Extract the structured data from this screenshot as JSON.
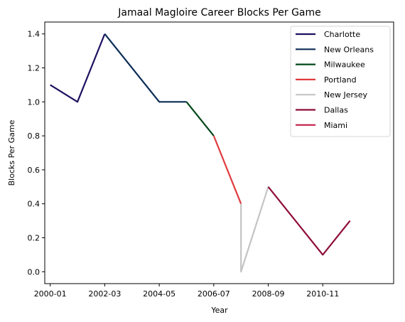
{
  "chart_data": {
    "type": "line",
    "title": "Jamaal Magloire Career Blocks Per Game",
    "xlabel": "Year",
    "ylabel": "Blocks Per Game",
    "xlim": [
      1999.8,
      2012.6
    ],
    "ylim": [
      -0.07,
      1.47
    ],
    "xticks": [
      {
        "value": 2000,
        "label": "2000-01"
      },
      {
        "value": 2002,
        "label": "2002-03"
      },
      {
        "value": 2004,
        "label": "2004-05"
      },
      {
        "value": 2006,
        "label": "2006-07"
      },
      {
        "value": 2008,
        "label": "2008-09"
      },
      {
        "value": 2010,
        "label": "2010-11"
      }
    ],
    "yticks": [
      0.0,
      0.2,
      0.4,
      0.6,
      0.8,
      1.0,
      1.2,
      1.4
    ],
    "legend_position": "top-right",
    "grid": false,
    "series": [
      {
        "name": "Charlotte",
        "color": "#1d1160",
        "points": [
          [
            2000,
            1.1
          ],
          [
            2001,
            1.0
          ],
          [
            2002,
            1.4
          ]
        ]
      },
      {
        "name": "New Orleans",
        "color": "#0c2c56",
        "points": [
          [
            2002,
            1.4
          ],
          [
            2004,
            1.0
          ],
          [
            2005,
            1.0
          ]
        ]
      },
      {
        "name": "Milwaukee",
        "color": "#00471b",
        "points": [
          [
            2005,
            1.0
          ],
          [
            2006,
            0.8
          ]
        ]
      },
      {
        "name": "Portland",
        "color": "#e03a3e",
        "points": [
          [
            2006,
            0.8
          ],
          [
            2007,
            0.4
          ]
        ]
      },
      {
        "name": "New Jersey",
        "color": "#c4c4c4",
        "points": [
          [
            2007,
            0.4
          ],
          [
            2007,
            0.0
          ],
          [
            2008,
            0.5
          ]
        ]
      },
      {
        "name": "Dallas",
        "color": "#8e0c3a",
        "points": [
          [
            2008,
            0.5
          ],
          [
            2010,
            0.1
          ],
          [
            2011,
            0.3
          ]
        ]
      },
      {
        "name": "Miami",
        "color": "#c41e4a",
        "points": []
      }
    ]
  }
}
